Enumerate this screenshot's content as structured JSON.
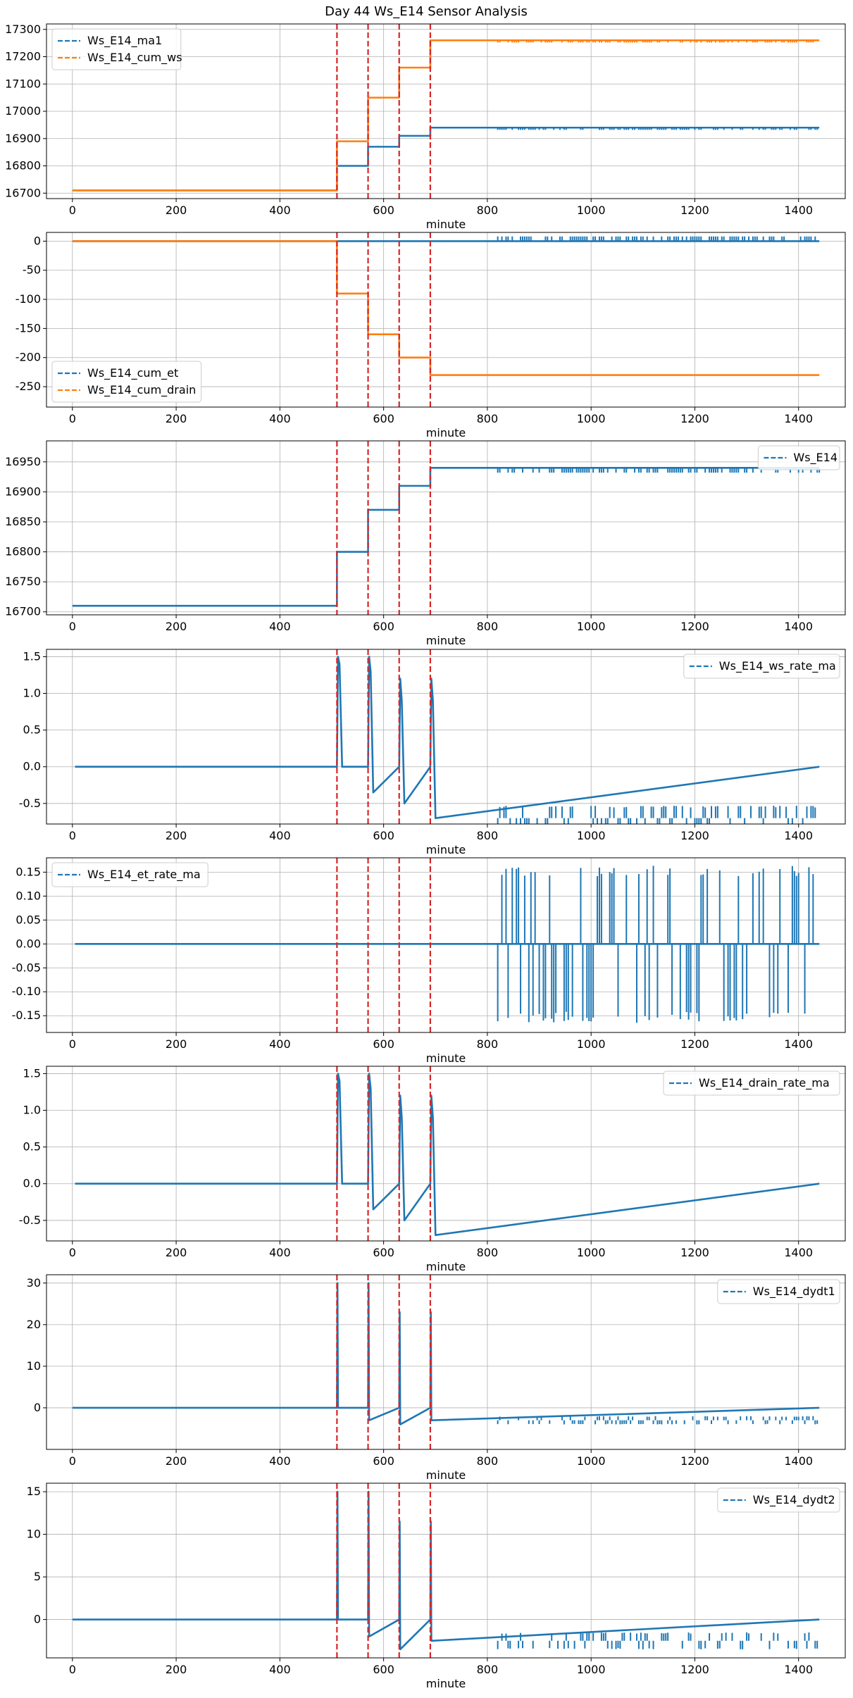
{
  "title": "Day 44 Ws_E14 Sensor Analysis",
  "colors": {
    "blue": "#1f77b4",
    "orange": "#ff7f0e",
    "event": "#d62728",
    "grid": "#b0b0b0"
  },
  "chart_data": [
    {
      "type": "line",
      "xlabel": "minute",
      "xlim": [
        -50,
        1490
      ],
      "ylim": [
        16680,
        17320
      ],
      "xticks": [
        0,
        200,
        400,
        600,
        800,
        1000,
        1200,
        1400
      ],
      "yticks": [
        16700,
        16800,
        16900,
        17000,
        17100,
        17200,
        17300
      ],
      "ytick_labels": [
        "16700",
        "16800",
        "16900",
        "17000",
        "17100",
        "17200",
        "17300"
      ],
      "legend": "upper left",
      "event_lines": [
        510,
        570,
        630,
        690
      ],
      "series": [
        {
          "name": "Ws_E14_ma1",
          "color": "blue",
          "x": [
            0,
            510,
            510,
            570,
            570,
            630,
            630,
            690,
            690,
            1440
          ],
          "y": [
            16710,
            16710,
            16800,
            16800,
            16870,
            16870,
            16910,
            16910,
            16940,
            16940
          ],
          "noise": {
            "from": 820,
            "to": 1440,
            "amp": 8,
            "dir": "down"
          }
        },
        {
          "name": "Ws_E14_cum_ws",
          "color": "orange",
          "x": [
            0,
            510,
            510,
            570,
            570,
            630,
            630,
            690,
            690,
            1440
          ],
          "y": [
            16710,
            16710,
            16890,
            16890,
            17050,
            17050,
            17160,
            17160,
            17260,
            17260
          ],
          "noise": {
            "from": 820,
            "to": 1440,
            "amp": 8,
            "dir": "down"
          }
        }
      ]
    },
    {
      "type": "line",
      "xlabel": "minute",
      "xlim": [
        -50,
        1490
      ],
      "ylim": [
        -285,
        15
      ],
      "xticks": [
        0,
        200,
        400,
        600,
        800,
        1000,
        1200,
        1400
      ],
      "yticks": [
        -250,
        -200,
        -150,
        -100,
        -50,
        0
      ],
      "ytick_labels": [
        "-250",
        "-200",
        "-150",
        "-100",
        "-50",
        "0"
      ],
      "legend": "lower left",
      "event_lines": [
        510,
        570,
        630,
        690
      ],
      "series": [
        {
          "name": "Ws_E14_cum_et",
          "color": "blue",
          "x": [
            0,
            1440
          ],
          "y": [
            0,
            0
          ],
          "noise": {
            "from": 820,
            "to": 1440,
            "amp": 8,
            "dir": "up"
          }
        },
        {
          "name": "Ws_E14_cum_drain",
          "color": "orange",
          "x": [
            0,
            510,
            510,
            570,
            570,
            630,
            630,
            690,
            690,
            1440
          ],
          "y": [
            0,
            0,
            -90,
            -90,
            -160,
            -160,
            -200,
            -200,
            -230,
            -230
          ]
        }
      ]
    },
    {
      "type": "line",
      "xlabel": "minute",
      "xlim": [
        -50,
        1490
      ],
      "ylim": [
        16695,
        16985
      ],
      "xticks": [
        0,
        200,
        400,
        600,
        800,
        1000,
        1200,
        1400
      ],
      "yticks": [
        16700,
        16750,
        16800,
        16850,
        16900,
        16950
      ],
      "ytick_labels": [
        "16700",
        "16750",
        "16800",
        "16850",
        "16900",
        "16950"
      ],
      "legend": "upper right",
      "event_lines": [
        510,
        570,
        630,
        690
      ],
      "series": [
        {
          "name": "Ws_E14",
          "color": "blue",
          "x": [
            0,
            510,
            510,
            570,
            570,
            630,
            630,
            690,
            690,
            1440
          ],
          "y": [
            16710,
            16710,
            16800,
            16800,
            16870,
            16870,
            16910,
            16910,
            16940,
            16940
          ],
          "noise": {
            "from": 820,
            "to": 1440,
            "amp": 8,
            "dir": "down"
          }
        }
      ]
    },
    {
      "type": "line",
      "xlabel": "minute",
      "xlim": [
        -50,
        1490
      ],
      "ylim": [
        -0.78,
        1.6
      ],
      "xticks": [
        0,
        200,
        400,
        600,
        800,
        1000,
        1200,
        1400
      ],
      "yticks": [
        -0.5,
        0.0,
        0.5,
        1.0,
        1.5
      ],
      "ytick_labels": [
        "-0.5",
        "0.0",
        "0.5",
        "1.0",
        "1.5"
      ],
      "legend": "upper right",
      "event_lines": [
        510,
        570,
        630,
        690
      ],
      "series": [
        {
          "name": "Ws_E14_ws_rate_ma",
          "color": "blue",
          "x": [
            5,
            510,
            512,
            515,
            520,
            525,
            570,
            572,
            575,
            580,
            630,
            632,
            635,
            640,
            690,
            692,
            695,
            700,
            1440
          ],
          "y": [
            0,
            0,
            1.5,
            1.4,
            0,
            0,
            0,
            1.5,
            1.3,
            -0.35,
            0,
            1.2,
            0.9,
            -0.5,
            0,
            1.2,
            0.9,
            -0.7,
            0
          ],
          "noise": {
            "from": 820,
            "to": 1440,
            "amp": 0.17,
            "dir": "both"
          }
        }
      ]
    },
    {
      "type": "line",
      "xlabel": "minute",
      "xlim": [
        -50,
        1490
      ],
      "ylim": [
        -0.185,
        0.18
      ],
      "xticks": [
        0,
        200,
        400,
        600,
        800,
        1000,
        1200,
        1400
      ],
      "yticks": [
        -0.15,
        -0.1,
        -0.05,
        0.0,
        0.05,
        0.1,
        0.15
      ],
      "ytick_labels": [
        "-0.15",
        "-0.10",
        "-0.05",
        "0.00",
        "0.05",
        "0.10",
        "0.15"
      ],
      "legend": "upper left",
      "event_lines": [
        510,
        570,
        630,
        690
      ],
      "series": [
        {
          "name": "Ws_E14_et_rate_ma",
          "color": "blue",
          "x": [
            5,
            1440
          ],
          "y": [
            0,
            0
          ],
          "noise": {
            "from": 820,
            "to": 1440,
            "amp": 0.165,
            "dir": "both"
          }
        }
      ]
    },
    {
      "type": "line",
      "xlabel": "minute",
      "xlim": [
        -50,
        1490
      ],
      "ylim": [
        -0.78,
        1.6
      ],
      "xticks": [
        0,
        200,
        400,
        600,
        800,
        1000,
        1200,
        1400
      ],
      "yticks": [
        -0.5,
        0.0,
        0.5,
        1.0,
        1.5
      ],
      "ytick_labels": [
        "-0.5",
        "0.0",
        "0.5",
        "1.0",
        "1.5"
      ],
      "legend": "upper right",
      "event_lines": [
        510,
        570,
        630,
        690
      ],
      "series": [
        {
          "name": "Ws_E14_drain_rate_ma",
          "color": "blue",
          "x": [
            5,
            510,
            512,
            515,
            520,
            525,
            570,
            572,
            575,
            580,
            630,
            632,
            635,
            640,
            690,
            692,
            695,
            700,
            1440
          ],
          "y": [
            0,
            0,
            1.5,
            1.4,
            0,
            0,
            0,
            1.5,
            1.3,
            -0.35,
            0,
            1.2,
            0.9,
            -0.5,
            0,
            1.2,
            0.9,
            -0.7,
            0
          ]
        }
      ]
    },
    {
      "type": "line",
      "xlabel": "minute",
      "xlim": [
        -50,
        1490
      ],
      "ylim": [
        -10,
        32
      ],
      "xticks": [
        0,
        200,
        400,
        600,
        800,
        1000,
        1200,
        1400
      ],
      "yticks": [
        0,
        10,
        20,
        30
      ],
      "ytick_labels": [
        "0",
        "10",
        "20",
        "30"
      ],
      "legend": "upper right",
      "event_lines": [
        510,
        570,
        630,
        690
      ],
      "series": [
        {
          "name": "Ws_E14_dydt1",
          "color": "blue",
          "x": [
            0,
            510,
            511,
            512,
            570,
            571,
            572,
            630,
            631,
            632,
            690,
            691,
            692,
            1440
          ],
          "y": [
            0,
            0,
            30,
            0,
            0,
            30,
            -3,
            0,
            23,
            -4,
            0,
            23,
            -3,
            0
          ],
          "noise": {
            "from": 820,
            "to": 1440,
            "amp": 1,
            "dir": "both"
          }
        }
      ]
    },
    {
      "type": "line",
      "xlabel": "minute",
      "xlim": [
        -50,
        1490
      ],
      "ylim": [
        -4.5,
        16
      ],
      "xticks": [
        0,
        200,
        400,
        600,
        800,
        1000,
        1200,
        1400
      ],
      "yticks": [
        0,
        5,
        10,
        15
      ],
      "ytick_labels": [
        "0",
        "5",
        "10",
        "15"
      ],
      "legend": "upper right",
      "event_lines": [
        510,
        570,
        630,
        690
      ],
      "series": [
        {
          "name": "Ws_E14_dydt2",
          "color": "blue",
          "x": [
            0,
            510,
            511,
            512,
            570,
            571,
            572,
            630,
            631,
            632,
            690,
            691,
            692,
            1440
          ],
          "y": [
            0,
            0,
            15,
            0,
            0,
            15,
            -2,
            0,
            11.5,
            -3.5,
            0,
            11.5,
            -2.5,
            0
          ],
          "noise": {
            "from": 820,
            "to": 1440,
            "amp": 1,
            "dir": "both"
          }
        }
      ]
    }
  ]
}
